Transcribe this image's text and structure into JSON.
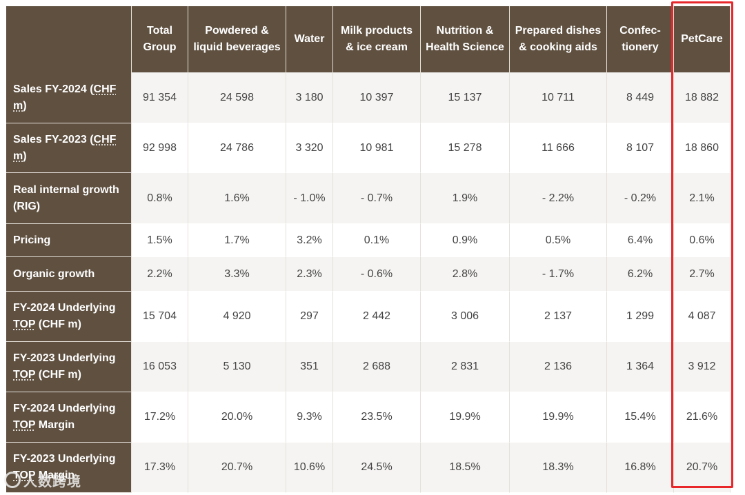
{
  "table": {
    "columns": [
      "Total Group",
      "Powdered & liquid beverages",
      "Water",
      "Milk products & ice cream",
      "Nutrition & Health Science",
      "Prepared dishes & cooking aids",
      "Confec-tionery",
      "PetCare"
    ],
    "rows": [
      {
        "label_pre": "Sales FY-2024 (",
        "label_abbr": "CHF m",
        "label_post": ")",
        "values": [
          "91 354",
          "24 598",
          "3 180",
          "10 397",
          "15 137",
          "10 711",
          "8 449",
          "18 882"
        ]
      },
      {
        "label_pre": "Sales FY-2023 (",
        "label_abbr": "CHF m",
        "label_post": ")",
        "values": [
          "92 998",
          "24 786",
          "3 320",
          "10 981",
          "15 278",
          "11 666",
          "8 107",
          "18 860"
        ]
      },
      {
        "label_pre": "Real internal growth (RIG)",
        "label_abbr": "",
        "label_post": "",
        "values": [
          "0.8%",
          "1.6%",
          "- 1.0%",
          "- 0.7%",
          "1.9%",
          "- 2.2%",
          "- 0.2%",
          "2.1%"
        ]
      },
      {
        "label_pre": "Pricing",
        "label_abbr": "",
        "label_post": "",
        "values": [
          "1.5%",
          "1.7%",
          "3.2%",
          "0.1%",
          "0.9%",
          "0.5%",
          "6.4%",
          "0.6%"
        ]
      },
      {
        "label_pre": "Organic growth",
        "label_abbr": "",
        "label_post": "",
        "values": [
          "2.2%",
          "3.3%",
          "2.3%",
          "- 0.6%",
          "2.8%",
          "- 1.7%",
          "6.2%",
          "2.7%"
        ]
      },
      {
        "label_pre": "FY-2024 Underlying ",
        "label_abbr": "TOP",
        "label_post": " (CHF m)",
        "values": [
          "15 704",
          "4 920",
          "297",
          "2 442",
          "3 006",
          "2 137",
          "1 299",
          "4 087"
        ]
      },
      {
        "label_pre": "FY-2023 Underlying ",
        "label_abbr": "TOP",
        "label_post": " (CHF m)",
        "values": [
          "16 053",
          "5 130",
          "351",
          "2 688",
          "2 831",
          "2 136",
          "1 364",
          "3 912"
        ]
      },
      {
        "label_pre": "FY-2024 Underlying ",
        "label_abbr": "TOP",
        "label_post": " Margin",
        "values": [
          "17.2%",
          "20.0%",
          "9.3%",
          "23.5%",
          "19.9%",
          "19.9%",
          "15.4%",
          "21.6%"
        ]
      },
      {
        "label_pre": "FY-2023 Underlying ",
        "label_abbr": "TOP",
        "label_post": " Margin",
        "values": [
          "17.3%",
          "20.7%",
          "10.6%",
          "24.5%",
          "18.5%",
          "18.3%",
          "16.8%",
          "20.7%"
        ]
      }
    ]
  },
  "highlight": {
    "column": "PetCare",
    "color": "#e8272b"
  },
  "colors": {
    "header_bg": "#5f5040",
    "header_text": "#ffffff",
    "stripe": "#f5f4f2"
  },
  "watermark": {
    "text": "人数跨境"
  }
}
